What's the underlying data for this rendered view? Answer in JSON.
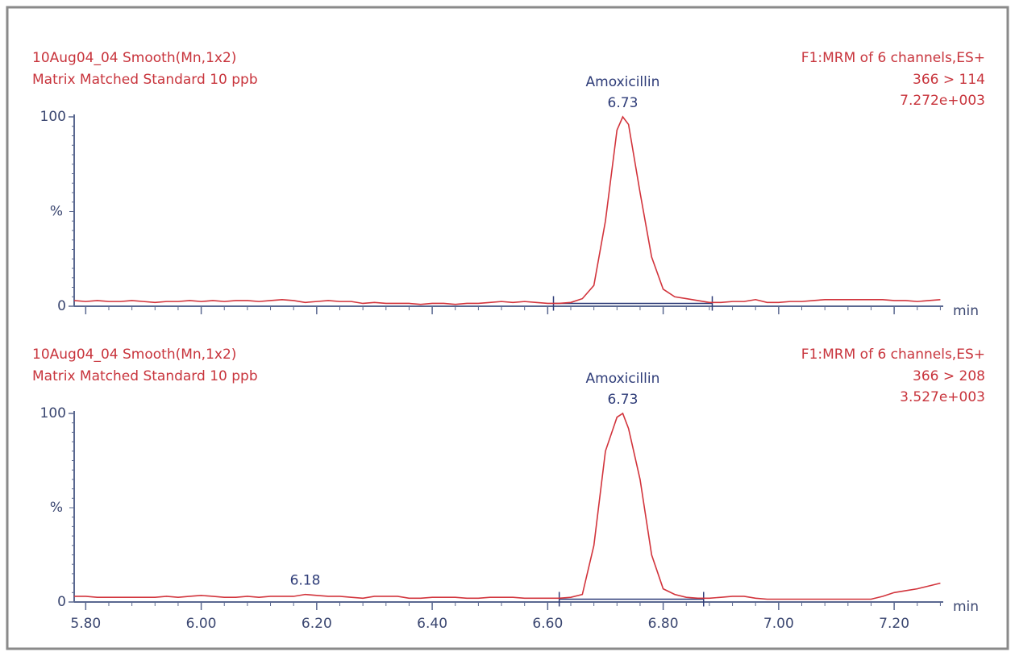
{
  "chart_data": [
    {
      "type": "line",
      "title": "10Aug04_04  Smooth(Mn,1x2)",
      "subtitle": "Matrix Matched Standard 10 ppb",
      "function": "F1:MRM of 6 channels,ES+",
      "transition": "366 > 114",
      "intensity": "7.272e+003",
      "ylabel": "%",
      "xlabel": "min",
      "color": "#d2343c",
      "x": [
        5.78,
        5.8,
        5.82,
        5.84,
        5.86,
        5.88,
        5.9,
        5.92,
        5.94,
        5.96,
        5.98,
        6.0,
        6.02,
        6.04,
        6.06,
        6.08,
        6.1,
        6.12,
        6.14,
        6.16,
        6.18,
        6.2,
        6.22,
        6.24,
        6.26,
        6.28,
        6.3,
        6.32,
        6.34,
        6.36,
        6.38,
        6.4,
        6.42,
        6.44,
        6.46,
        6.48,
        6.5,
        6.52,
        6.54,
        6.56,
        6.58,
        6.6,
        6.62,
        6.64,
        6.66,
        6.68,
        6.7,
        6.72,
        6.73,
        6.74,
        6.76,
        6.78,
        6.8,
        6.82,
        6.84,
        6.86,
        6.88,
        6.9,
        6.92,
        6.94,
        6.96,
        6.98,
        7.0,
        7.02,
        7.04,
        7.06,
        7.08,
        7.1,
        7.12,
        7.14,
        7.16,
        7.18,
        7.2,
        7.22,
        7.24,
        7.26,
        7.28
      ],
      "values": [
        3,
        2.5,
        3,
        2.5,
        2.5,
        3,
        2.5,
        2,
        2.5,
        2.5,
        3,
        2.5,
        3,
        2.5,
        3,
        3,
        2.5,
        3,
        3.5,
        3,
        2,
        2.5,
        3,
        2.5,
        2.5,
        1.5,
        2,
        1.5,
        1.5,
        1.5,
        1,
        1.5,
        1.5,
        1,
        1.5,
        1.5,
        2,
        2.5,
        2,
        2.5,
        2,
        1.5,
        1.5,
        2,
        4,
        11,
        45,
        93,
        100,
        96,
        60,
        26,
        9,
        5,
        4,
        3,
        2,
        2,
        2.5,
        2.5,
        3.5,
        2,
        2,
        2.5,
        2.5,
        3,
        3.5,
        3.5,
        3.5,
        3.5,
        3.5,
        3.5,
        3,
        3,
        2.5,
        3,
        3.5
      ],
      "integration": {
        "x": [
          6.61,
          6.885
        ],
        "y": [
          1.5,
          1.5
        ]
      },
      "annotations": [
        {
          "name": "Amoxicillin",
          "x": 6.73,
          "y": 100
        }
      ],
      "xlim": [
        5.78,
        7.285
      ],
      "ylim": [
        0,
        100
      ],
      "xticks": [
        5.8,
        6.0,
        6.2,
        6.4,
        6.6,
        6.8,
        7.0,
        7.2
      ],
      "xtick_labels": false,
      "yticks": [
        0,
        100
      ]
    },
    {
      "type": "line",
      "title": "10Aug04_04  Smooth(Mn,1x2)",
      "subtitle": "Matrix Matched Standard 10 ppb",
      "function": "F1:MRM of 6 channels,ES+",
      "transition": "366 > 208",
      "intensity": "3.527e+003",
      "ylabel": "%",
      "xlabel": "min",
      "color": "#d2343c",
      "x": [
        5.78,
        5.8,
        5.82,
        5.84,
        5.86,
        5.88,
        5.9,
        5.92,
        5.94,
        5.96,
        5.98,
        6.0,
        6.02,
        6.04,
        6.06,
        6.08,
        6.1,
        6.12,
        6.14,
        6.16,
        6.18,
        6.2,
        6.22,
        6.24,
        6.26,
        6.28,
        6.3,
        6.32,
        6.34,
        6.36,
        6.38,
        6.4,
        6.42,
        6.44,
        6.46,
        6.48,
        6.5,
        6.52,
        6.54,
        6.56,
        6.58,
        6.6,
        6.62,
        6.64,
        6.66,
        6.68,
        6.7,
        6.72,
        6.73,
        6.74,
        6.76,
        6.78,
        6.8,
        6.82,
        6.84,
        6.86,
        6.88,
        6.9,
        6.92,
        6.94,
        6.96,
        6.98,
        7.0,
        7.02,
        7.04,
        7.06,
        7.08,
        7.1,
        7.12,
        7.14,
        7.16,
        7.18,
        7.2,
        7.22,
        7.24,
        7.26,
        7.28
      ],
      "values": [
        3,
        3,
        2.5,
        2.5,
        2.5,
        2.5,
        2.5,
        2.5,
        3,
        2.5,
        3,
        3.5,
        3,
        2.5,
        2.5,
        3,
        2.5,
        3,
        3,
        3,
        4,
        3.5,
        3,
        3,
        2.5,
        2,
        3,
        3,
        3,
        2,
        2,
        2.5,
        2.5,
        2.5,
        2,
        2,
        2.5,
        2.5,
        2.5,
        2,
        2,
        2,
        2,
        2.5,
        4,
        30,
        80,
        98,
        100,
        92,
        65,
        25,
        7,
        4,
        2.5,
        2,
        2,
        2.5,
        3,
        3,
        2,
        1.5,
        1.5,
        1.5,
        1.5,
        1.5,
        1.5,
        1.5,
        1.5,
        1.5,
        1.5,
        3,
        5,
        6,
        7,
        8.5,
        10
      ],
      "integration": {
        "x": [
          6.62,
          6.87
        ],
        "y": [
          1.5,
          1.5
        ]
      },
      "annotations": [
        {
          "name": "Amoxicillin",
          "x": 6.73,
          "y": 100
        },
        {
          "x": 6.18,
          "y": 4
        }
      ],
      "xlim": [
        5.78,
        7.285
      ],
      "ylim": [
        0,
        100
      ],
      "xticks": [
        {
          "value": 5.8,
          "label": "5.80"
        },
        {
          "value": 6.0,
          "label": "6.00"
        },
        {
          "value": 6.2,
          "label": "6.20"
        },
        {
          "value": 6.4,
          "label": "6.40"
        },
        {
          "value": 6.6,
          "label": "6.60"
        },
        {
          "value": 6.8,
          "label": "6.80"
        },
        {
          "value": 7.0,
          "label": "7.00"
        },
        {
          "value": 7.2,
          "label": "7.20"
        }
      ],
      "xtick_labels": true,
      "yticks": [
        0,
        100
      ]
    }
  ]
}
